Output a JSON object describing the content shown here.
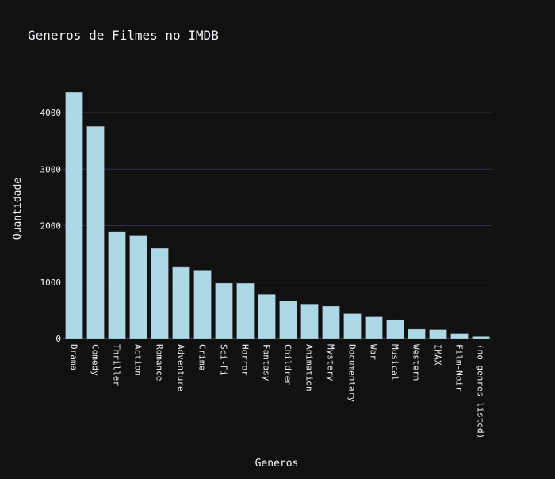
{
  "chart_data": {
    "type": "bar",
    "title": "Generos de Filmes no IMDB",
    "xlabel": "Generos",
    "ylabel": "Quantidade",
    "categories": [
      "Drama",
      "Comedy",
      "Thriller",
      "Action",
      "Romance",
      "Adventure",
      "Crime",
      "Sci-Fi",
      "Horror",
      "Fantasy",
      "Children",
      "Animation",
      "Mystery",
      "Documentary",
      "War",
      "Musical",
      "Western",
      "IMAX",
      "Film-Noir",
      "(no genres listed)"
    ],
    "values": [
      4361,
      3756,
      1894,
      1828,
      1596,
      1263,
      1199,
      980,
      978,
      779,
      664,
      611,
      573,
      440,
      382,
      334,
      167,
      158,
      87,
      34
    ],
    "ylim": [
      0,
      4590
    ],
    "yticks": [
      0,
      1000,
      2000,
      3000,
      4000
    ],
    "ytick_labels": [
      "0",
      "1000",
      "2000",
      "3000",
      "4000"
    ],
    "grid": true,
    "bar_color": "#add8e6",
    "background_color": "#111111",
    "grid_color": "#283442",
    "text_color": "#f2f5fa"
  }
}
